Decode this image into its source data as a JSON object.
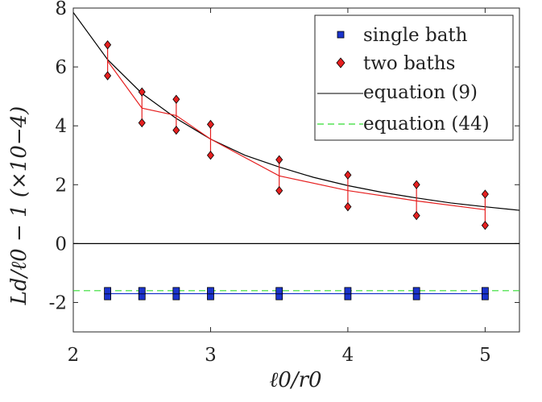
{
  "chart_data": {
    "type": "line",
    "xlabel": "ℓ0/r0",
    "ylabel": "Ld/ℓ0 − 1 (×10−4)",
    "xlim": [
      2,
      5.25
    ],
    "ylim": [
      -3,
      8
    ],
    "x_ticks": [
      2,
      3,
      4,
      5
    ],
    "x_tick_labels": [
      "2",
      "3",
      "4",
      "5"
    ],
    "y_ticks": [
      -2,
      0,
      2,
      4,
      6,
      8
    ],
    "y_tick_labels": [
      "-2",
      "0",
      "2",
      "4",
      "6",
      "8"
    ],
    "grid": false,
    "legend_position": "top-right",
    "x": [
      2.25,
      2.5,
      2.75,
      3.0,
      3.5,
      4.0,
      4.5,
      5.0
    ],
    "series": [
      {
        "name": "single bath",
        "color": "#1a33cc",
        "marker": "square",
        "values": [
          -1.7,
          -1.7,
          -1.7,
          -1.7,
          -1.7,
          -1.7,
          -1.7,
          -1.7
        ],
        "lower": [
          -1.8,
          -1.8,
          -1.8,
          -1.8,
          -1.8,
          -1.8,
          -1.8,
          -1.8
        ],
        "upper": [
          -1.6,
          -1.6,
          -1.6,
          -1.6,
          -1.6,
          -1.6,
          -1.6,
          -1.6
        ]
      },
      {
        "name": "two baths",
        "color": "#e62020",
        "marker": "diamond",
        "values": [
          6.2,
          4.6,
          4.35,
          3.55,
          2.3,
          1.8,
          1.45,
          1.15
        ],
        "lower": [
          5.7,
          4.1,
          3.85,
          3.0,
          1.8,
          1.25,
          0.95,
          0.62
        ],
        "upper": [
          6.75,
          5.15,
          4.9,
          4.05,
          2.85,
          2.33,
          2.0,
          1.68
        ]
      },
      {
        "name": "equation (9)",
        "color": "#000000",
        "style": "solid",
        "x": [
          2.0,
          2.25,
          2.5,
          2.75,
          3.0,
          3.25,
          3.5,
          3.75,
          4.0,
          4.25,
          4.5,
          4.75,
          5.0,
          5.25
        ],
        "values": [
          7.85,
          6.25,
          5.1,
          4.25,
          3.55,
          3.0,
          2.6,
          2.25,
          1.97,
          1.74,
          1.55,
          1.38,
          1.25,
          1.13
        ]
      },
      {
        "name": "equation (44)",
        "color": "#33dd33",
        "style": "dashed",
        "x": [
          2.0,
          5.25
        ],
        "values": [
          -1.6,
          -1.6
        ]
      }
    ],
    "reference_line": {
      "y": 0,
      "color": "#000000"
    }
  }
}
